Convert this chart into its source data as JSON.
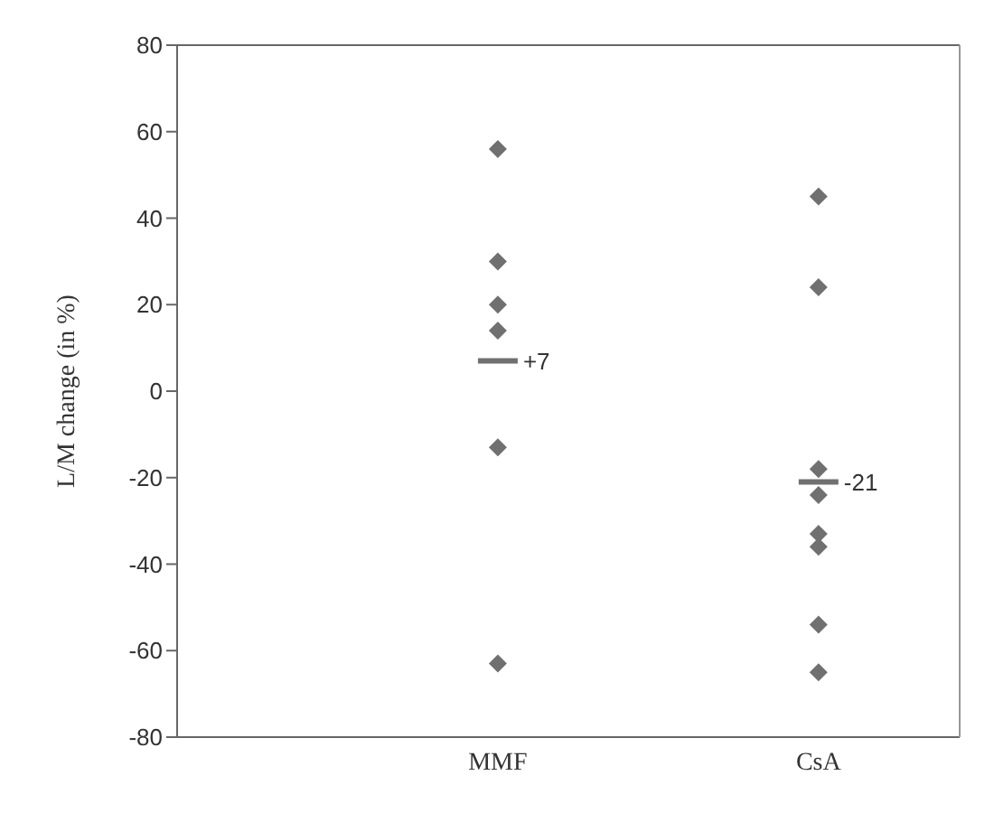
{
  "chart_data": {
    "type": "scatter",
    "ylabel": "L/M change (in %)",
    "categories": [
      "MMF",
      "CsA"
    ],
    "series": [
      {
        "color": "#707070",
        "x": [
          "MMF",
          "MMF",
          "MMF",
          "MMF",
          "MMF",
          "MMF"
        ],
        "values": [
          56,
          30,
          20,
          14,
          -13,
          -63
        ]
      },
      {
        "color": "#707070",
        "x": [
          "CsA",
          "CsA",
          "CsA",
          "CsA",
          "CsA",
          "CsA",
          "CsA",
          "CsA"
        ],
        "values": [
          45,
          24,
          -18,
          -24,
          -33,
          -36,
          -54,
          -65
        ]
      },
      {
        "type": "box",
        "color": "#707070",
        "boxes": [
          {
            "low": 7,
            "q1": 7,
            "median": 7,
            "q3": 7,
            "high": 7
          },
          {
            "low": -21,
            "q1": -21,
            "median": -21,
            "q3": -21,
            "high": -21
          }
        ]
      }
    ],
    "annotations": [
      {
        "text": "+7",
        "x": "MMF",
        "y": 7
      },
      {
        "text": "-21",
        "x": "CsA",
        "y": -21
      }
    ],
    "ylim": [
      -80,
      80
    ],
    "yticks": [
      -80,
      -60,
      -40,
      -20,
      0,
      20,
      40,
      60,
      80
    ],
    "marker": "diamond",
    "grid": false
  }
}
